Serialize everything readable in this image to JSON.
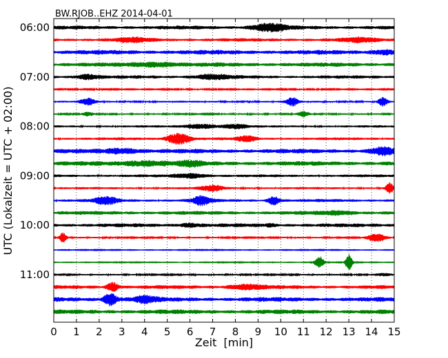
{
  "chart_data": {
    "type": "line",
    "title": "BW.RJOB..EHZ 2014-04-01",
    "xlabel": "Zeit  [min]",
    "ylabel": "UTC (Lokalzeit = UTC + 02:00)",
    "xlim": [
      0,
      15
    ],
    "x_ticks": [
      "0",
      "1",
      "2",
      "3",
      "4",
      "5",
      "6",
      "7",
      "8",
      "9",
      "10",
      "11",
      "12",
      "13",
      "14",
      "15"
    ],
    "y_tick_labels": [
      {
        "row": 0,
        "text": "06:00"
      },
      {
        "row": 4,
        "text": "07:00"
      },
      {
        "row": 8,
        "text": "08:00"
      },
      {
        "row": 12,
        "text": "09:00"
      },
      {
        "row": 16,
        "text": "10:00"
      },
      {
        "row": 20,
        "text": "11:00"
      }
    ],
    "grid": "vertical dotted at each minute",
    "colors": [
      "#000000",
      "#ff0000",
      "#0000ff",
      "#008000"
    ],
    "traces": [
      {
        "start": "06:00",
        "amp": 0.25,
        "bursts": [
          [
            9.5,
            1.5,
            0.5
          ]
        ]
      },
      {
        "start": "06:15",
        "amp": 0.22,
        "bursts": [
          [
            3.5,
            1.5,
            0.25
          ],
          [
            13.5,
            1.5,
            0.25
          ]
        ]
      },
      {
        "start": "06:30",
        "amp": 0.3,
        "bursts": [
          [
            14.5,
            1.0,
            0.25
          ]
        ]
      },
      {
        "start": "06:45",
        "amp": 0.28,
        "bursts": [
          [
            4.5,
            2.0,
            0.25
          ]
        ]
      },
      {
        "start": "07:00",
        "amp": 0.22,
        "bursts": [
          [
            1.5,
            1.0,
            0.3
          ],
          [
            7.0,
            1.5,
            0.3
          ]
        ]
      },
      {
        "start": "07:15",
        "amp": 0.08,
        "bursts": []
      },
      {
        "start": "07:30",
        "amp": 0.12,
        "bursts": [
          [
            1.5,
            0.6,
            0.5
          ],
          [
            10.5,
            0.5,
            0.6
          ],
          [
            14.5,
            0.4,
            0.6
          ]
        ]
      },
      {
        "start": "07:45",
        "amp": 0.1,
        "bursts": [
          [
            1.5,
            0.5,
            0.3
          ],
          [
            11.0,
            0.5,
            0.4
          ]
        ]
      },
      {
        "start": "08:00",
        "amp": 0.15,
        "bursts": [
          [
            6.5,
            1.5,
            0.3
          ],
          [
            8.0,
            1.0,
            0.3
          ]
        ]
      },
      {
        "start": "08:15",
        "amp": 0.18,
        "bursts": [
          [
            5.5,
            1.0,
            0.8
          ],
          [
            8.5,
            0.8,
            0.4
          ]
        ]
      },
      {
        "start": "08:30",
        "amp": 0.3,
        "bursts": [
          [
            3.0,
            1.5,
            0.3
          ],
          [
            14.5,
            1.0,
            0.5
          ]
        ]
      },
      {
        "start": "08:45",
        "amp": 0.3,
        "bursts": [
          [
            4.0,
            2.0,
            0.3
          ],
          [
            6.0,
            1.0,
            0.3
          ]
        ]
      },
      {
        "start": "09:00",
        "amp": 0.18,
        "bursts": [
          [
            6.0,
            1.5,
            0.3
          ]
        ]
      },
      {
        "start": "09:15",
        "amp": 0.15,
        "bursts": [
          [
            7.0,
            1.0,
            0.4
          ],
          [
            14.8,
            0.3,
            0.8
          ]
        ]
      },
      {
        "start": "09:30",
        "amp": 0.2,
        "bursts": [
          [
            2.3,
            1.0,
            0.5
          ],
          [
            6.5,
            0.8,
            0.6
          ],
          [
            9.7,
            0.5,
            0.6
          ]
        ]
      },
      {
        "start": "09:45",
        "amp": 0.25,
        "bursts": [
          [
            12.5,
            1.5,
            0.2
          ]
        ]
      },
      {
        "start": "10:00",
        "amp": 0.25,
        "bursts": [
          [
            6.0,
            1.0,
            0.2
          ],
          [
            9.5,
            0.5,
            0.15
          ]
        ]
      },
      {
        "start": "10:15",
        "amp": 0.1,
        "bursts": [
          [
            0.4,
            0.3,
            0.7
          ],
          [
            14.2,
            0.8,
            0.6
          ]
        ]
      },
      {
        "start": "10:30",
        "amp": 0.05,
        "bursts": []
      },
      {
        "start": "10:45",
        "amp": 0.05,
        "bursts": [
          [
            11.7,
            0.4,
            0.9
          ],
          [
            13.0,
            0.3,
            1.2
          ]
        ]
      },
      {
        "start": "11:00",
        "amp": 0.1,
        "bursts": [
          [
            14.5,
            0.8,
            0.2
          ]
        ]
      },
      {
        "start": "11:15",
        "amp": 0.25,
        "bursts": [
          [
            2.6,
            0.5,
            0.6
          ],
          [
            8.5,
            1.5,
            0.3
          ]
        ]
      },
      {
        "start": "11:30",
        "amp": 0.3,
        "bursts": [
          [
            2.5,
            0.6,
            0.8
          ],
          [
            4.0,
            1.0,
            0.4
          ]
        ]
      },
      {
        "start": "11:45",
        "amp": 0.3,
        "bursts": []
      }
    ]
  }
}
